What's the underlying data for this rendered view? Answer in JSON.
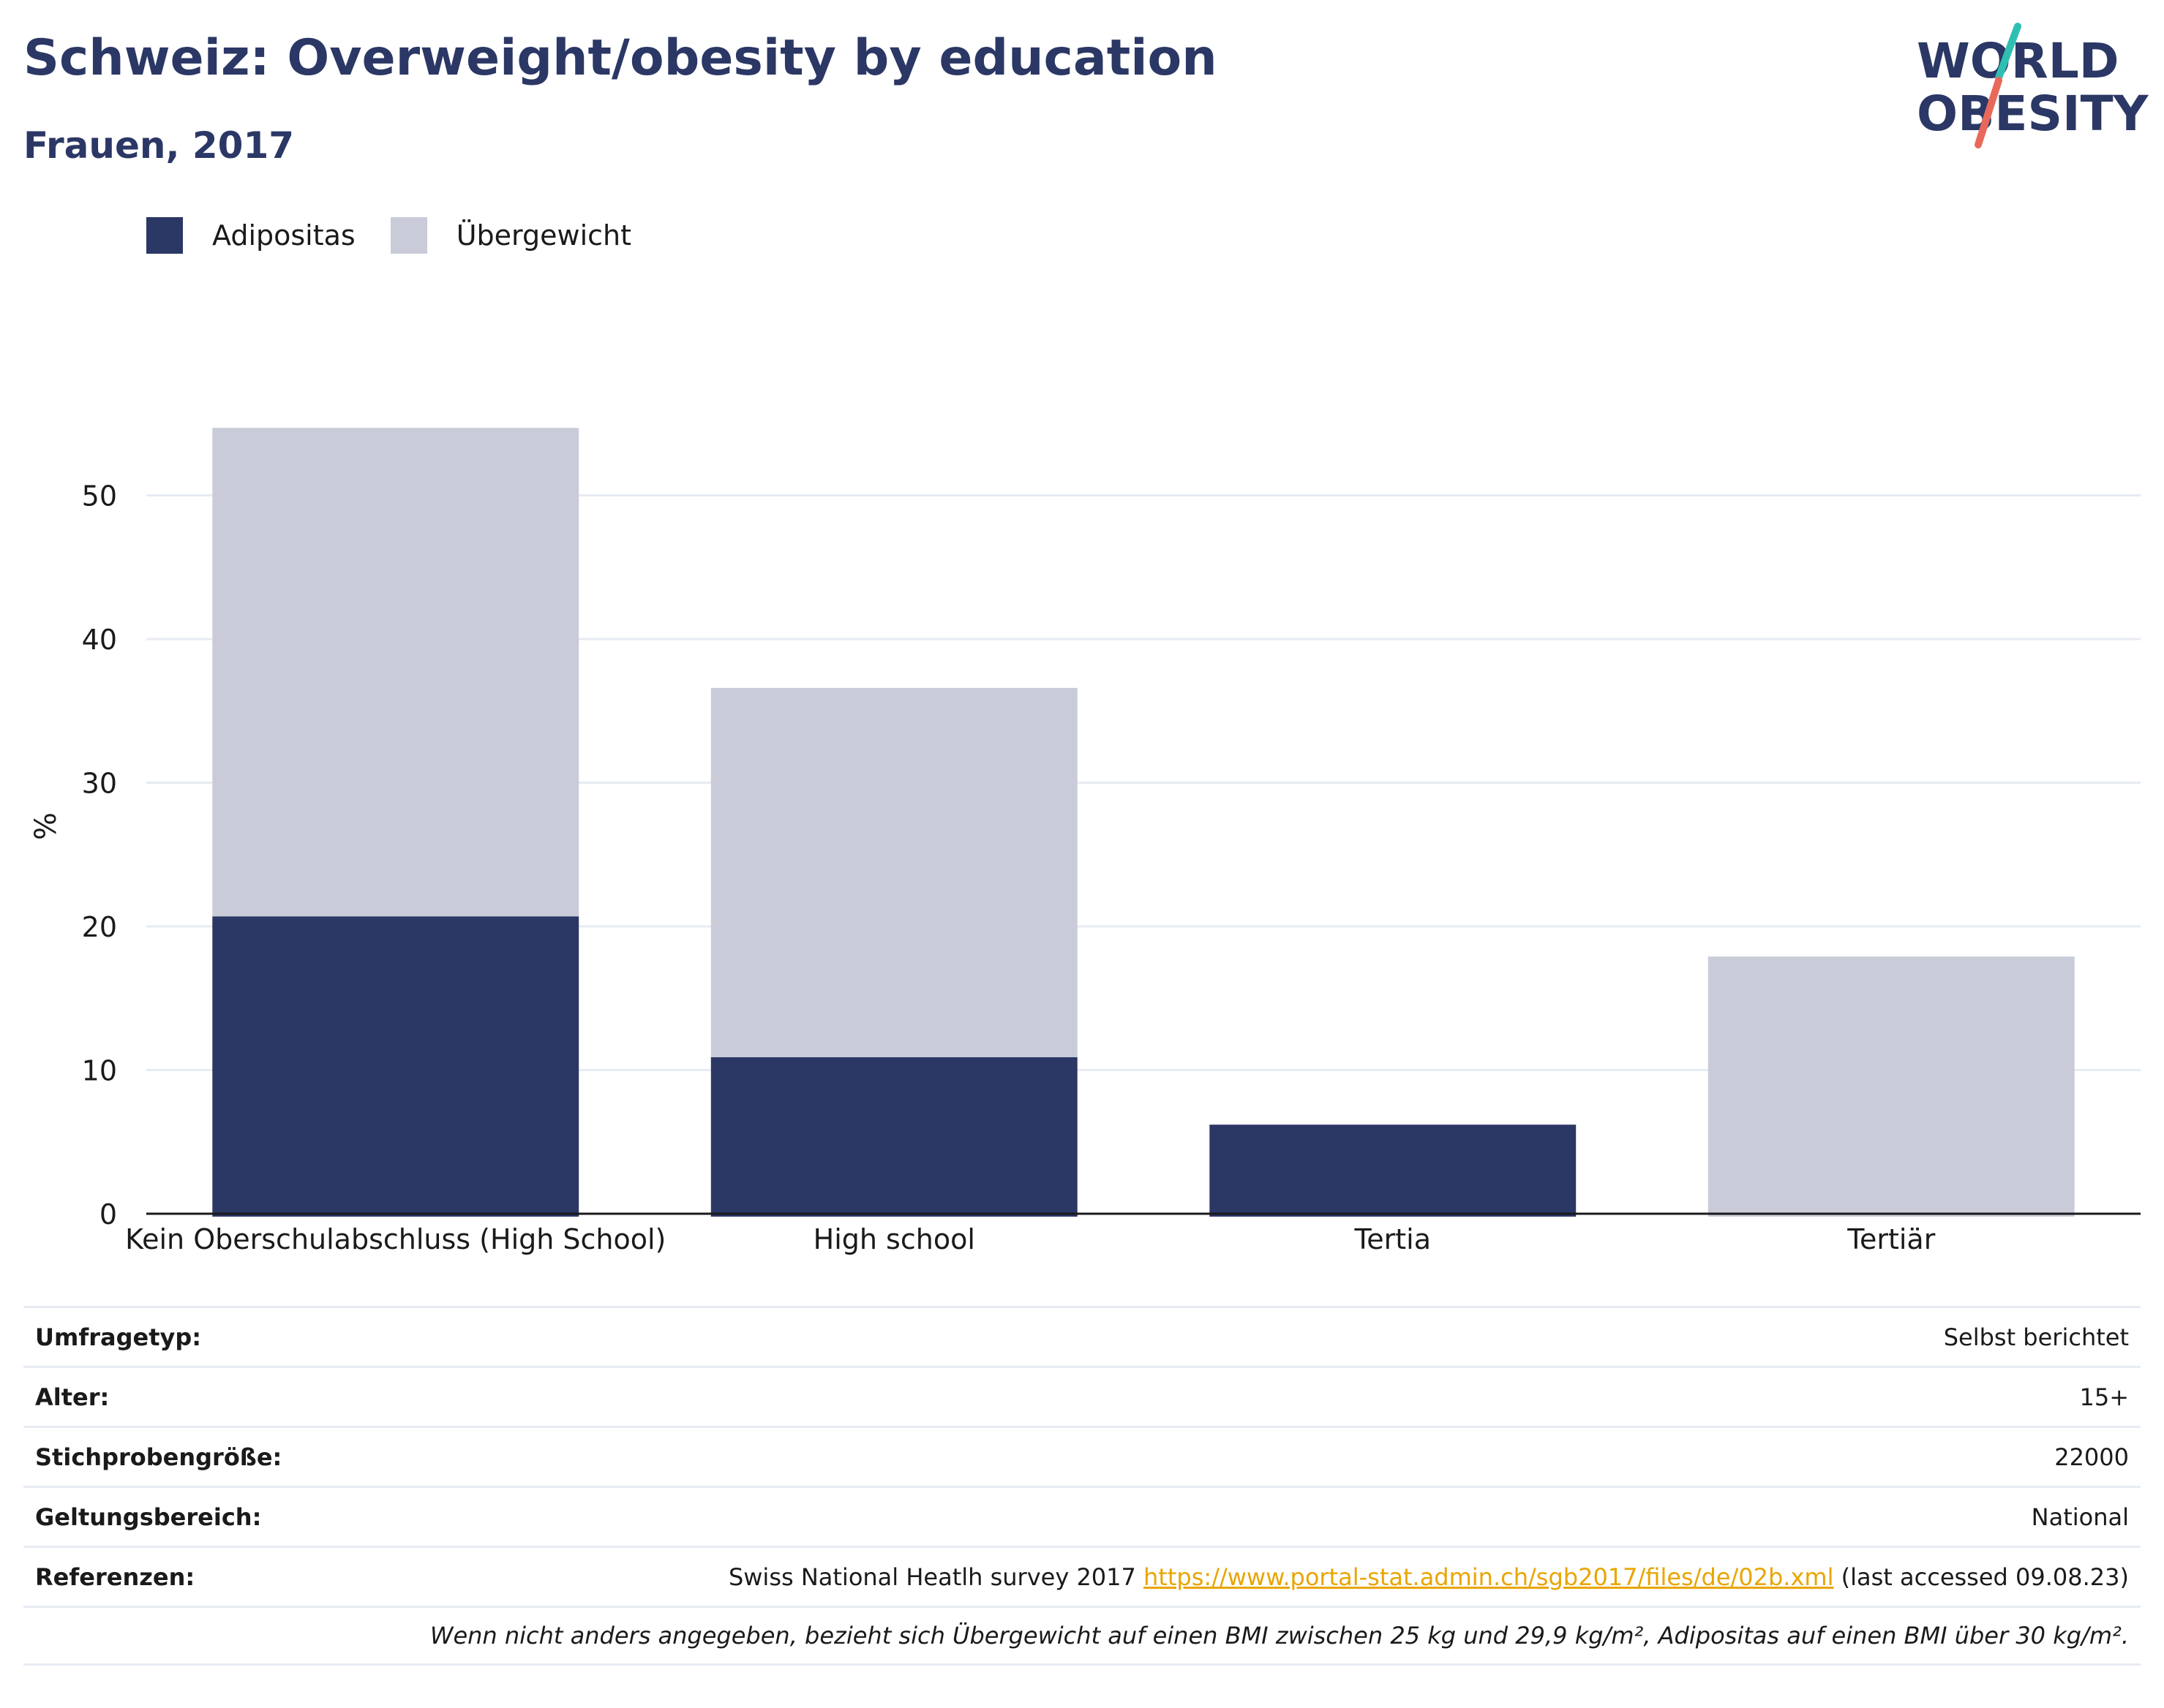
{
  "header": {
    "title": "Schweiz: Overweight/obesity by education",
    "subtitle": "Frauen, 2017",
    "logo_line1": "WORLD",
    "logo_line2": "OBESITY"
  },
  "legend": {
    "items": [
      {
        "label": "Adipositas",
        "color": "#2b3765"
      },
      {
        "label": "Übergewicht",
        "color": "#c9ccd8"
      }
    ]
  },
  "chart_data": {
    "type": "bar",
    "stacked": true,
    "categories": [
      "Kein Oberschulabschluss (High School)",
      "High school",
      "Tertia",
      "Tertiär"
    ],
    "series": [
      {
        "name": "Adipositas",
        "color": "#2b3765",
        "values": [
          20.7,
          10.9,
          6.2,
          0
        ]
      },
      {
        "name": "Übergewicht",
        "color": "#c9ccd8",
        "values": [
          34.0,
          25.7,
          0,
          17.9
        ]
      }
    ],
    "ylabel": "%",
    "ylim": [
      0,
      57
    ],
    "yticks": [
      0,
      10,
      20,
      30,
      40,
      50
    ],
    "grid": true,
    "legend_position": "top-left"
  },
  "meta": {
    "rows": [
      {
        "label": "Umfragetyp:",
        "value": "Selbst berichtet"
      },
      {
        "label": "Alter:",
        "value": "15+"
      },
      {
        "label": "Stichprobengröße:",
        "value": "22000"
      },
      {
        "label": "Geltungsbereich:",
        "value": "National"
      }
    ],
    "reference": {
      "label": "Referenzen:",
      "text_before": "Swiss National Heatlh survey 2017 ",
      "link": "https://www.portal-stat.admin.ch/sgb2017/files/de/02b.xml",
      "text_after": " (last accessed 09.08.23)"
    },
    "note": "Wenn nicht anders angegeben, bezieht sich Übergewicht auf einen BMI zwischen 25 kg und 29,9 kg/m², Adipositas auf einen BMI über 30 kg/m²."
  }
}
